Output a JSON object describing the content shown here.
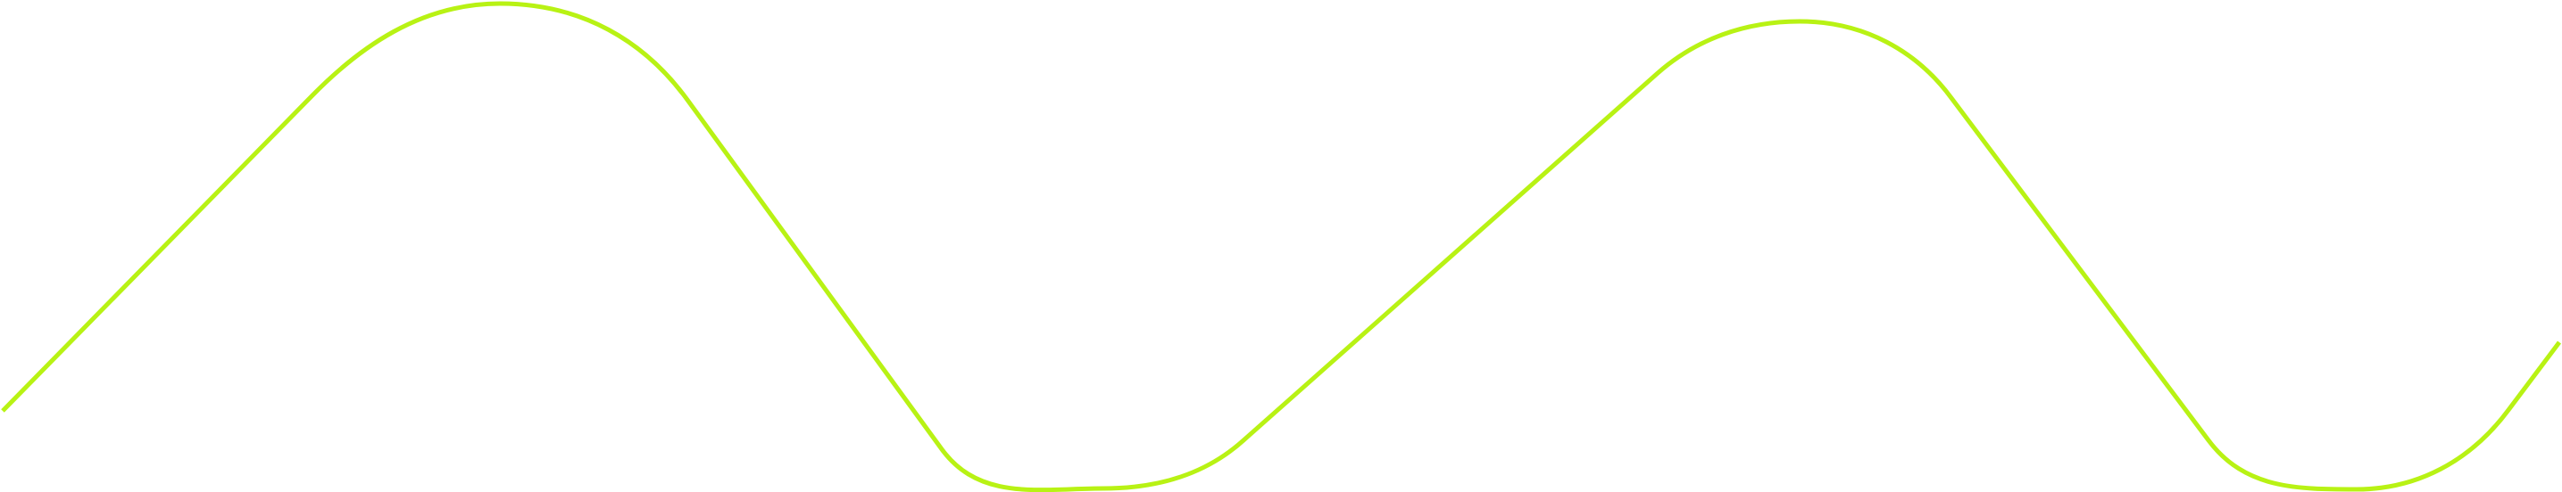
{
  "graphic": {
    "stroke_color": "#b8f214",
    "background_color": "#ffffff"
  }
}
